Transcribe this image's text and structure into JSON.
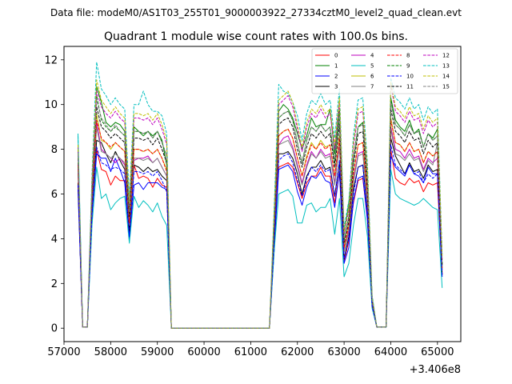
{
  "chart_data": {
    "type": "line",
    "suptitle": "Data file: modeM0/AS1T03_255T01_9000003922_27334cztM0_level2_quad_clean.evt",
    "title": "Quadrant 1 module wise count rates with 100.0s bins.",
    "xlabel": "",
    "ylabel": "",
    "x_offset_label": "+3.406e8",
    "xlim": [
      57000,
      65500
    ],
    "ylim": [
      -0.6,
      12.6
    ],
    "xticks": [
      57000,
      58000,
      59000,
      60000,
      61000,
      62000,
      63000,
      64000,
      65000
    ],
    "xtick_labels": [
      "57000",
      "58000",
      "59000",
      "60000",
      "61000",
      "62000",
      "63000",
      "64000",
      "65000"
    ],
    "yticks": [
      0,
      2,
      4,
      6,
      8,
      10,
      12
    ],
    "ytick_labels": [
      "0",
      "2",
      "4",
      "6",
      "8",
      "10",
      "12"
    ],
    "legend_location": "upper right",
    "x": [
      57300,
      57400,
      57500,
      57600,
      57700,
      57800,
      57900,
      58000,
      58100,
      58200,
      58300,
      58400,
      58500,
      58600,
      58700,
      58800,
      58900,
      59000,
      59100,
      59200,
      59300,
      61400,
      61500,
      61600,
      61700,
      61800,
      61900,
      62000,
      62100,
      62200,
      62300,
      62400,
      62500,
      62600,
      62700,
      62800,
      62900,
      63000,
      63100,
      63200,
      63300,
      63400,
      63500,
      63600,
      63700,
      63800,
      63900,
      64000,
      64100,
      64200,
      64300,
      64400,
      64500,
      64600,
      64700,
      64800,
      64900,
      65000,
      65100
    ],
    "series": [
      {
        "name": "0",
        "color": "#ff0000",
        "dash": "solid",
        "values": [
          6.5,
          0.05,
          0.05,
          5.4,
          8.0,
          7.1,
          7.0,
          6.4,
          6.8,
          6.6,
          6.6,
          4.1,
          7.3,
          6.7,
          6.8,
          6.7,
          6.3,
          6.7,
          6.4,
          6.3,
          0,
          0,
          3.7,
          7.2,
          7.3,
          7.4,
          7.2,
          6.5,
          5.8,
          6.5,
          6.8,
          6.8,
          7.2,
          6.8,
          6.8,
          5.6,
          7.0,
          3.0,
          3.9,
          5.6,
          6.6,
          6.7,
          4.9,
          1.1,
          0.05,
          0.05,
          0.05,
          8.0,
          6.7,
          6.5,
          6.4,
          6.7,
          6.5,
          6.6,
          6.1,
          6.5,
          6.4,
          6.5,
          2.4
        ]
      },
      {
        "name": "1",
        "color": "#008000",
        "dash": "solid",
        "values": [
          8.0,
          0.05,
          0.05,
          6.2,
          10.8,
          10.1,
          9.2,
          9.0,
          9.2,
          9.1,
          8.8,
          5.3,
          9.0,
          8.8,
          8.6,
          8.8,
          8.6,
          8.8,
          8.4,
          7.3,
          0,
          0,
          4.7,
          9.7,
          10.0,
          9.8,
          9.4,
          8.7,
          8.0,
          8.6,
          9.4,
          9.0,
          9.1,
          9.1,
          9.8,
          7.8,
          9.8,
          4.2,
          5.6,
          7.6,
          9.0,
          9.2,
          6.7,
          1.3,
          0.05,
          0.05,
          0.05,
          10.3,
          9.3,
          9.0,
          8.8,
          9.3,
          8.7,
          8.9,
          8.1,
          8.7,
          8.5,
          8.9,
          2.8
        ]
      },
      {
        "name": "2",
        "color": "#0000ff",
        "dash": "solid",
        "values": [
          6.2,
          0.05,
          0.05,
          5.0,
          7.8,
          7.6,
          7.6,
          7.0,
          7.6,
          7.1,
          6.5,
          4.0,
          6.4,
          6.5,
          6.2,
          6.5,
          6.5,
          6.5,
          6.3,
          6.2,
          0,
          0,
          3.4,
          7.1,
          7.2,
          7.3,
          7.0,
          6.1,
          5.5,
          6.3,
          6.8,
          6.7,
          7.0,
          6.6,
          6.5,
          5.4,
          7.0,
          2.9,
          3.6,
          5.7,
          6.7,
          6.8,
          4.8,
          1.0,
          0.05,
          0.05,
          0.05,
          7.7,
          7.2,
          7.0,
          6.8,
          7.3,
          6.9,
          6.8,
          6.5,
          7.2,
          6.9,
          6.9,
          2.3
        ]
      },
      {
        "name": "3",
        "color": "#000000",
        "dash": "solid",
        "values": [
          6.5,
          0.05,
          0.05,
          5.3,
          8.4,
          8.3,
          7.8,
          7.4,
          7.9,
          7.5,
          7.1,
          4.3,
          7.3,
          7.2,
          7.0,
          7.2,
          7.0,
          7.1,
          6.8,
          6.6,
          0,
          0,
          3.9,
          7.8,
          7.8,
          7.9,
          7.6,
          6.9,
          6.0,
          6.8,
          7.2,
          7.2,
          7.5,
          7.1,
          7.2,
          5.9,
          7.4,
          3.1,
          4.1,
          6.2,
          7.2,
          7.3,
          5.2,
          1.1,
          0.05,
          0.05,
          0.05,
          8.5,
          7.7,
          7.3,
          6.9,
          7.4,
          7.0,
          7.1,
          6.7,
          7.3,
          7.0,
          7.1,
          2.4
        ]
      },
      {
        "name": "4",
        "color": "#bf00bf",
        "dash": "solid",
        "values": [
          7.2,
          0.05,
          0.05,
          5.8,
          9.2,
          8.0,
          7.8,
          7.6,
          7.4,
          7.6,
          7.3,
          4.7,
          7.5,
          7.6,
          7.6,
          7.7,
          7.4,
          7.6,
          7.2,
          6.8,
          0,
          0,
          4.2,
          8.2,
          8.5,
          8.6,
          8.1,
          7.3,
          6.5,
          7.3,
          7.9,
          7.6,
          8.0,
          7.7,
          7.8,
          6.5,
          8.2,
          3.4,
          4.4,
          6.6,
          7.8,
          7.9,
          5.7,
          1.2,
          0.05,
          0.05,
          0.05,
          9.0,
          8.0,
          7.9,
          7.6,
          8.0,
          7.6,
          7.7,
          7.1,
          7.6,
          7.4,
          7.6,
          2.6
        ]
      },
      {
        "name": "5",
        "color": "#00bfbf",
        "dash": "solid",
        "values": [
          8.7,
          0.05,
          0.05,
          4.6,
          7.2,
          5.8,
          6.0,
          5.3,
          5.6,
          5.8,
          5.9,
          3.8,
          5.9,
          5.4,
          5.7,
          5.5,
          5.2,
          5.6,
          5.0,
          4.6,
          0,
          0,
          3.4,
          6.0,
          6.1,
          6.2,
          5.9,
          4.7,
          4.7,
          5.5,
          5.6,
          5.2,
          5.4,
          5.4,
          5.8,
          4.2,
          5.8,
          2.3,
          2.9,
          4.6,
          5.8,
          5.8,
          4.1,
          0.9,
          0.05,
          0.05,
          0.05,
          7.1,
          6.0,
          5.8,
          5.7,
          5.6,
          5.5,
          5.6,
          5.8,
          5.6,
          5.4,
          5.3,
          1.8
        ]
      },
      {
        "name": "6",
        "color": "#bfbf00",
        "dash": "solid",
        "values": [
          7.4,
          0.05,
          0.05,
          5.9,
          9.6,
          8.4,
          8.3,
          8.0,
          8.3,
          8.1,
          7.9,
          4.8,
          8.0,
          8.0,
          7.9,
          8.0,
          7.8,
          8.0,
          7.6,
          7.1,
          0,
          0,
          4.3,
          8.6,
          8.8,
          8.9,
          8.5,
          7.6,
          6.8,
          7.7,
          8.3,
          8.0,
          8.4,
          8.1,
          8.2,
          6.8,
          8.6,
          3.6,
          4.6,
          6.9,
          8.2,
          8.3,
          6.0,
          1.2,
          0.05,
          0.05,
          0.05,
          9.4,
          8.3,
          8.2,
          7.9,
          8.3,
          7.9,
          8.0,
          7.4,
          7.9,
          7.7,
          7.9,
          2.7
        ]
      },
      {
        "name": "7",
        "color": "#808080",
        "dash": "solid",
        "values": [
          7.0,
          0.05,
          0.05,
          5.6,
          9.0,
          7.9,
          7.8,
          7.6,
          7.8,
          7.6,
          7.4,
          4.6,
          7.6,
          7.6,
          7.5,
          7.6,
          7.4,
          7.6,
          7.2,
          6.8,
          0,
          0,
          4.1,
          8.2,
          8.3,
          8.4,
          8.0,
          7.2,
          6.4,
          7.2,
          7.8,
          7.6,
          7.9,
          7.6,
          7.7,
          6.4,
          8.1,
          3.4,
          4.3,
          6.5,
          7.7,
          7.8,
          5.6,
          1.2,
          0.05,
          0.05,
          0.05,
          8.9,
          7.8,
          7.7,
          7.5,
          7.8,
          7.5,
          7.6,
          7.0,
          7.5,
          7.3,
          8.3,
          2.6
        ]
      },
      {
        "name": "8",
        "color": "#ff0000",
        "dash": "dashed",
        "values": [
          7.3,
          0.05,
          0.05,
          5.9,
          9.3,
          8.5,
          8.3,
          8.1,
          8.3,
          8.1,
          7.9,
          4.7,
          8.0,
          8.0,
          7.9,
          8.0,
          7.8,
          8.0,
          7.6,
          7.0,
          0,
          0,
          4.3,
          8.6,
          8.8,
          8.9,
          8.5,
          7.6,
          6.8,
          7.6,
          8.2,
          8.0,
          8.3,
          8.0,
          8.2,
          6.8,
          8.5,
          3.6,
          4.6,
          6.9,
          8.2,
          8.3,
          6.0,
          1.2,
          0.05,
          0.05,
          0.05,
          9.3,
          8.3,
          8.2,
          7.9,
          8.3,
          7.9,
          8.0,
          7.4,
          7.9,
          7.7,
          7.9,
          2.7
        ]
      },
      {
        "name": "9",
        "color": "#008000",
        "dash": "dashed",
        "values": [
          8.0,
          0.05,
          0.05,
          6.4,
          10.4,
          9.3,
          9.0,
          8.8,
          9.0,
          8.8,
          8.6,
          5.2,
          8.8,
          8.8,
          8.7,
          8.8,
          8.5,
          8.8,
          8.3,
          7.7,
          0,
          0,
          4.7,
          9.4,
          9.6,
          9.7,
          9.3,
          8.3,
          7.4,
          8.4,
          9.0,
          8.8,
          9.1,
          8.8,
          9.0,
          7.4,
          9.4,
          3.9,
          5.0,
          7.6,
          9.0,
          9.1,
          6.6,
          1.3,
          0.05,
          0.05,
          0.05,
          10.2,
          9.1,
          8.9,
          8.6,
          9.1,
          8.7,
          8.8,
          8.1,
          8.7,
          8.4,
          8.6,
          2.9
        ]
      },
      {
        "name": "10",
        "color": "#0000ff",
        "dash": "dashed",
        "values": [
          6.4,
          0.05,
          0.05,
          5.1,
          8.1,
          7.4,
          7.3,
          7.1,
          7.2,
          7.1,
          6.9,
          4.1,
          7.0,
          7.0,
          6.9,
          7.0,
          6.8,
          7.0,
          6.6,
          6.1,
          0,
          0,
          3.8,
          7.5,
          7.7,
          7.8,
          7.4,
          6.6,
          5.9,
          6.7,
          7.2,
          7.0,
          7.3,
          7.0,
          7.1,
          5.9,
          7.5,
          3.1,
          4.0,
          6.0,
          7.2,
          7.3,
          5.2,
          1.0,
          0.05,
          0.05,
          0.05,
          8.2,
          7.3,
          7.1,
          6.9,
          7.3,
          6.9,
          7.0,
          6.5,
          6.9,
          6.7,
          6.9,
          2.3
        ]
      },
      {
        "name": "11",
        "color": "#000000",
        "dash": "dashed",
        "values": [
          7.6,
          0.05,
          0.05,
          6.1,
          9.9,
          9.0,
          8.8,
          8.5,
          8.7,
          8.5,
          8.3,
          5.0,
          8.5,
          8.5,
          8.4,
          8.5,
          8.2,
          8.5,
          8.0,
          7.4,
          0,
          0,
          4.5,
          9.1,
          9.3,
          9.4,
          9.0,
          8.0,
          7.2,
          8.1,
          8.7,
          8.5,
          8.8,
          8.5,
          8.7,
          7.2,
          9.1,
          3.8,
          4.8,
          7.3,
          8.7,
          8.8,
          6.3,
          1.3,
          0.05,
          0.05,
          0.05,
          9.8,
          8.8,
          8.6,
          8.3,
          8.8,
          8.4,
          8.5,
          7.8,
          8.4,
          8.1,
          8.3,
          2.8
        ]
      },
      {
        "name": "12",
        "color": "#bf00bf",
        "dash": "dashed",
        "values": [
          8.1,
          0.05,
          0.05,
          6.5,
          10.6,
          9.9,
          9.6,
          9.4,
          9.7,
          9.4,
          9.2,
          5.5,
          9.4,
          9.4,
          9.3,
          9.4,
          9.1,
          9.4,
          8.9,
          8.2,
          0,
          0,
          5.0,
          10.0,
          10.2,
          10.4,
          9.9,
          8.9,
          7.9,
          9.0,
          9.6,
          9.4,
          9.8,
          9.4,
          9.6,
          8.0,
          10.1,
          4.2,
          5.3,
          8.1,
          9.6,
          9.7,
          7.0,
          1.4,
          0.05,
          0.05,
          0.05,
          10.9,
          9.7,
          9.5,
          9.2,
          9.7,
          9.3,
          9.4,
          8.7,
          9.3,
          9.0,
          9.2,
          3.1
        ]
      },
      {
        "name": "13",
        "color": "#00bfbf",
        "dash": "dashed",
        "values": [
          8.6,
          0.05,
          0.05,
          6.9,
          11.9,
          10.7,
          10.4,
          10.0,
          10.3,
          10.0,
          9.8,
          5.9,
          10.0,
          10.0,
          10.6,
          10.0,
          9.7,
          9.7,
          9.5,
          8.7,
          0,
          0,
          5.3,
          10.9,
          10.6,
          10.5,
          10.1,
          9.5,
          8.4,
          9.6,
          10.2,
          10.0,
          10.5,
          10.0,
          10.2,
          8.5,
          10.7,
          4.5,
          5.7,
          8.6,
          10.2,
          10.3,
          7.4,
          1.5,
          0.05,
          0.05,
          0.05,
          11.2,
          10.3,
          10.1,
          9.8,
          10.3,
          9.8,
          10.0,
          9.3,
          9.9,
          9.6,
          9.8,
          3.3
        ]
      },
      {
        "name": "14",
        "color": "#bfbf00",
        "dash": "dashed",
        "values": [
          8.2,
          0.05,
          0.05,
          6.6,
          11.1,
          10.2,
          9.9,
          9.6,
          9.9,
          9.6,
          9.4,
          5.6,
          9.6,
          9.6,
          9.5,
          9.6,
          9.3,
          9.6,
          9.1,
          8.4,
          0,
          0,
          5.1,
          10.2,
          10.4,
          10.6,
          10.1,
          9.1,
          8.1,
          9.2,
          9.8,
          9.6,
          10.0,
          9.6,
          9.8,
          8.2,
          10.3,
          4.3,
          5.4,
          8.3,
          9.8,
          9.9,
          7.1,
          1.4,
          0.05,
          0.05,
          0.05,
          11.0,
          9.9,
          9.7,
          9.4,
          9.9,
          9.5,
          9.6,
          8.9,
          9.5,
          9.2,
          9.4,
          3.2
        ]
      },
      {
        "name": "15",
        "color": "#808080",
        "dash": "dashed",
        "values": [
          7.8,
          0.05,
          0.05,
          6.3,
          10.2,
          9.4,
          9.1,
          8.8,
          9.1,
          8.8,
          8.6,
          5.2,
          8.8,
          8.8,
          8.7,
          8.8,
          8.5,
          8.8,
          8.3,
          7.7,
          0,
          0,
          4.7,
          9.4,
          9.6,
          9.7,
          9.3,
          8.3,
          7.4,
          8.4,
          9.0,
          8.8,
          9.1,
          8.8,
          9.0,
          7.5,
          9.4,
          3.9,
          5.0,
          7.6,
          9.0,
          9.1,
          6.5,
          1.3,
          0.05,
          0.05,
          0.05,
          10.1,
          9.1,
          8.9,
          8.6,
          9.1,
          8.7,
          8.8,
          8.1,
          8.7,
          8.4,
          8.6,
          2.9
        ]
      }
    ]
  }
}
